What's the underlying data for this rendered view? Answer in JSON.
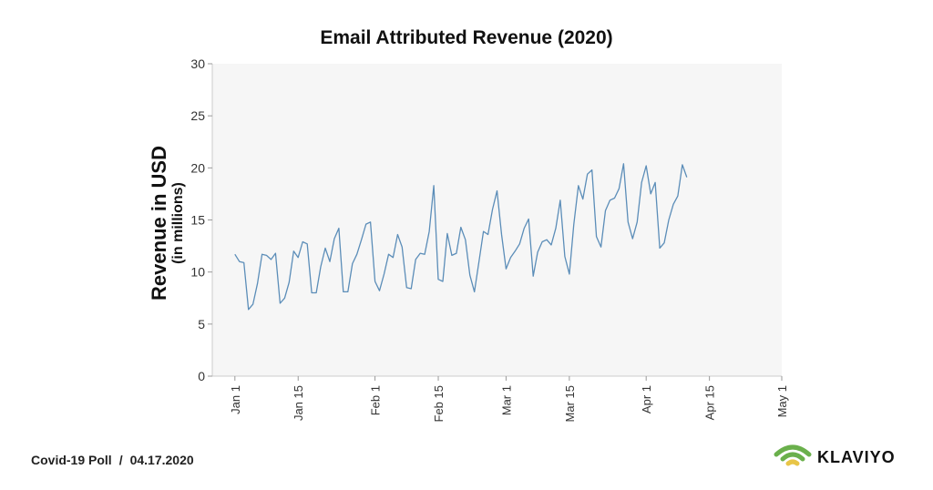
{
  "colors": {
    "line": "#5b8db8",
    "plot_bg": "#f6f6f6",
    "accent": "#6ab04c"
  },
  "footer": {
    "poll": "Covid-19 Poll",
    "separator": "/",
    "date": "04.17.2020"
  },
  "brand": {
    "name": "KLAVIYO",
    "icon": "klaviyo-wifi-icon"
  },
  "chart_data": {
    "type": "line",
    "title": "Email Attributed Revenue (2020)",
    "ylabel": "Revenue in USD",
    "ylabel_sub": "(in millions)",
    "xlabel": "",
    "ylim": [
      0,
      30
    ],
    "yticks": [
      0,
      5,
      10,
      15,
      20,
      25,
      30
    ],
    "xlim": [
      "2019-12-27",
      "2020-05-01"
    ],
    "xticks": [
      {
        "date": "2020-01-01",
        "label": "Jan 1"
      },
      {
        "date": "2020-01-15",
        "label": "Jan 15"
      },
      {
        "date": "2020-02-01",
        "label": "Feb 1"
      },
      {
        "date": "2020-02-15",
        "label": "Feb 15"
      },
      {
        "date": "2020-03-01",
        "label": "Mar 1"
      },
      {
        "date": "2020-03-15",
        "label": "Mar 15"
      },
      {
        "date": "2020-04-01",
        "label": "Apr 1"
      },
      {
        "date": "2020-04-15",
        "label": "Apr 15"
      },
      {
        "date": "2020-05-01",
        "label": "May 1"
      }
    ],
    "grid": false,
    "series": [
      {
        "start": "2020-01-01",
        "values": [
          11.7,
          11.0,
          10.9,
          6.4,
          6.9,
          8.9,
          11.7,
          11.6,
          11.2,
          11.8,
          7.0,
          7.5,
          9.0,
          12.0,
          11.4,
          12.9,
          12.7,
          8.0,
          8.0,
          10.5,
          12.3,
          11.0,
          13.2,
          14.2,
          8.1,
          8.1,
          10.8,
          11.7,
          13.1,
          14.6,
          14.8,
          9.1,
          8.2,
          9.8,
          11.7,
          11.4,
          13.6,
          12.4,
          8.5,
          8.4,
          11.2,
          11.8,
          11.7,
          13.9,
          18.3,
          9.3,
          9.1,
          13.7,
          11.6,
          11.8,
          14.3,
          13.1,
          9.7,
          8.1,
          11.0,
          13.9,
          13.6,
          16.0,
          17.8,
          13.6,
          10.3,
          11.4,
          12.0,
          12.7,
          14.2,
          15.1,
          9.6,
          11.9,
          12.9,
          13.1,
          12.6,
          14.2,
          16.9,
          11.5,
          9.8,
          14.6,
          18.3,
          17.0,
          19.4,
          19.8,
          13.4,
          12.4,
          15.9,
          16.9,
          17.1,
          18.0,
          20.4,
          14.8,
          13.2,
          14.8,
          18.6,
          20.2,
          17.5,
          18.6,
          12.3,
          12.8,
          15.0,
          16.5,
          17.3,
          20.3,
          19.1
        ]
      }
    ]
  }
}
